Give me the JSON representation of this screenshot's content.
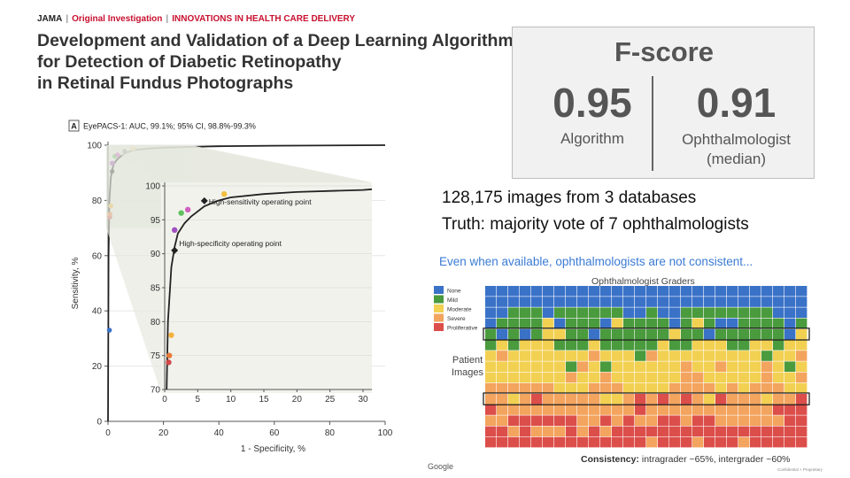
{
  "header": {
    "journal": "JAMA",
    "article_type": "Original Investigation",
    "section": "INNOVATIONS IN HEALTH CARE DELIVERY",
    "title_lines": [
      "Development and Validation of a Deep Learning Algorithm",
      "for Detection of Diabetic Retinopathy",
      "in Retinal Fundus Photographs"
    ]
  },
  "fscore": {
    "title": "F-score",
    "algorithm_value": "0.95",
    "algorithm_label": "Algorithm",
    "ophthalmologist_value": "0.91",
    "ophthalmologist_label_line1": "Ophthalmologist",
    "ophthalmologist_label_line2": "(median)"
  },
  "stats": {
    "images": "128,175 images from 3 databases",
    "truth": "Truth: majority vote of 7 ophthalmologists"
  },
  "grader_chart": {
    "heading": "Even when available, ophthalmologists are not consistent...",
    "subheading": "Ophthalmologist Graders",
    "row_axis_label_line1": "Patient",
    "row_axis_label_line2": "Images",
    "consistency_label": "Consistency:",
    "consistency_text": "intragrader ~65%, intergrader ~60%",
    "google": "Google",
    "confidential": "Confidential + Proprietary",
    "legend": [
      {
        "label": "None",
        "color": "#3a72c8"
      },
      {
        "label": "Mild",
        "color": "#4a9a3e"
      },
      {
        "label": "Moderate",
        "color": "#f2d052"
      },
      {
        "label": "Severe",
        "color": "#f3a45e"
      },
      {
        "label": "Proliferative",
        "color": "#dc4e4a"
      }
    ]
  },
  "chart_data": {
    "type": "line",
    "panel_label": "A",
    "title": "EyePACS-1: AUC, 99.1%; 95% CI, 98.8%-99.3%",
    "xlabel": "1 - Specificity, %",
    "ylabel": "Sensitivity, %",
    "xlim": [
      0,
      100
    ],
    "ylim": [
      0,
      100
    ],
    "x_ticks": [
      0,
      20,
      40,
      60,
      80,
      100
    ],
    "y_ticks": [
      0,
      20,
      40,
      60,
      80,
      100
    ],
    "series": [
      {
        "x": [
          0,
          0.2,
          0.5,
          1,
          1.5,
          2,
          3,
          4,
          6,
          8,
          10,
          15,
          20,
          30,
          40,
          60,
          100
        ],
        "y": [
          0,
          60,
          80,
          88,
          91,
          93,
          94.5,
          95.5,
          97,
          97.8,
          98.3,
          98.8,
          99.1,
          99.4,
          99.6,
          99.8,
          100
        ]
      }
    ],
    "operating_points": [
      {
        "x": 1.5,
        "y": 90.5,
        "label": "High-specificity operating point"
      },
      {
        "x": 6,
        "y": 97.8,
        "label": "High-sensitivity operating point"
      }
    ],
    "ophthalmologist_points": [
      {
        "x": 0.5,
        "y": 33,
        "color": "#3a72c8"
      },
      {
        "x": 0.6,
        "y": 74,
        "color": "#d04848"
      },
      {
        "x": 0.7,
        "y": 75,
        "color": "#e87b3a"
      },
      {
        "x": 1.0,
        "y": 78,
        "color": "#f2b33c"
      },
      {
        "x": 1.5,
        "y": 93.5,
        "color": "#a050c0"
      },
      {
        "x": 2.5,
        "y": 96,
        "color": "#60c060"
      },
      {
        "x": 3.5,
        "y": 96.5,
        "color": "#d060c0"
      },
      {
        "x": 9,
        "y": 98.8,
        "color": "#f2c040"
      }
    ],
    "inset": {
      "xlim": [
        0,
        30
      ],
      "ylim": [
        70,
        100
      ],
      "x_ticks": [
        0,
        5,
        10,
        15,
        20,
        25,
        30
      ],
      "y_ticks": [
        70,
        75,
        80,
        85,
        90,
        95,
        100
      ]
    }
  }
}
